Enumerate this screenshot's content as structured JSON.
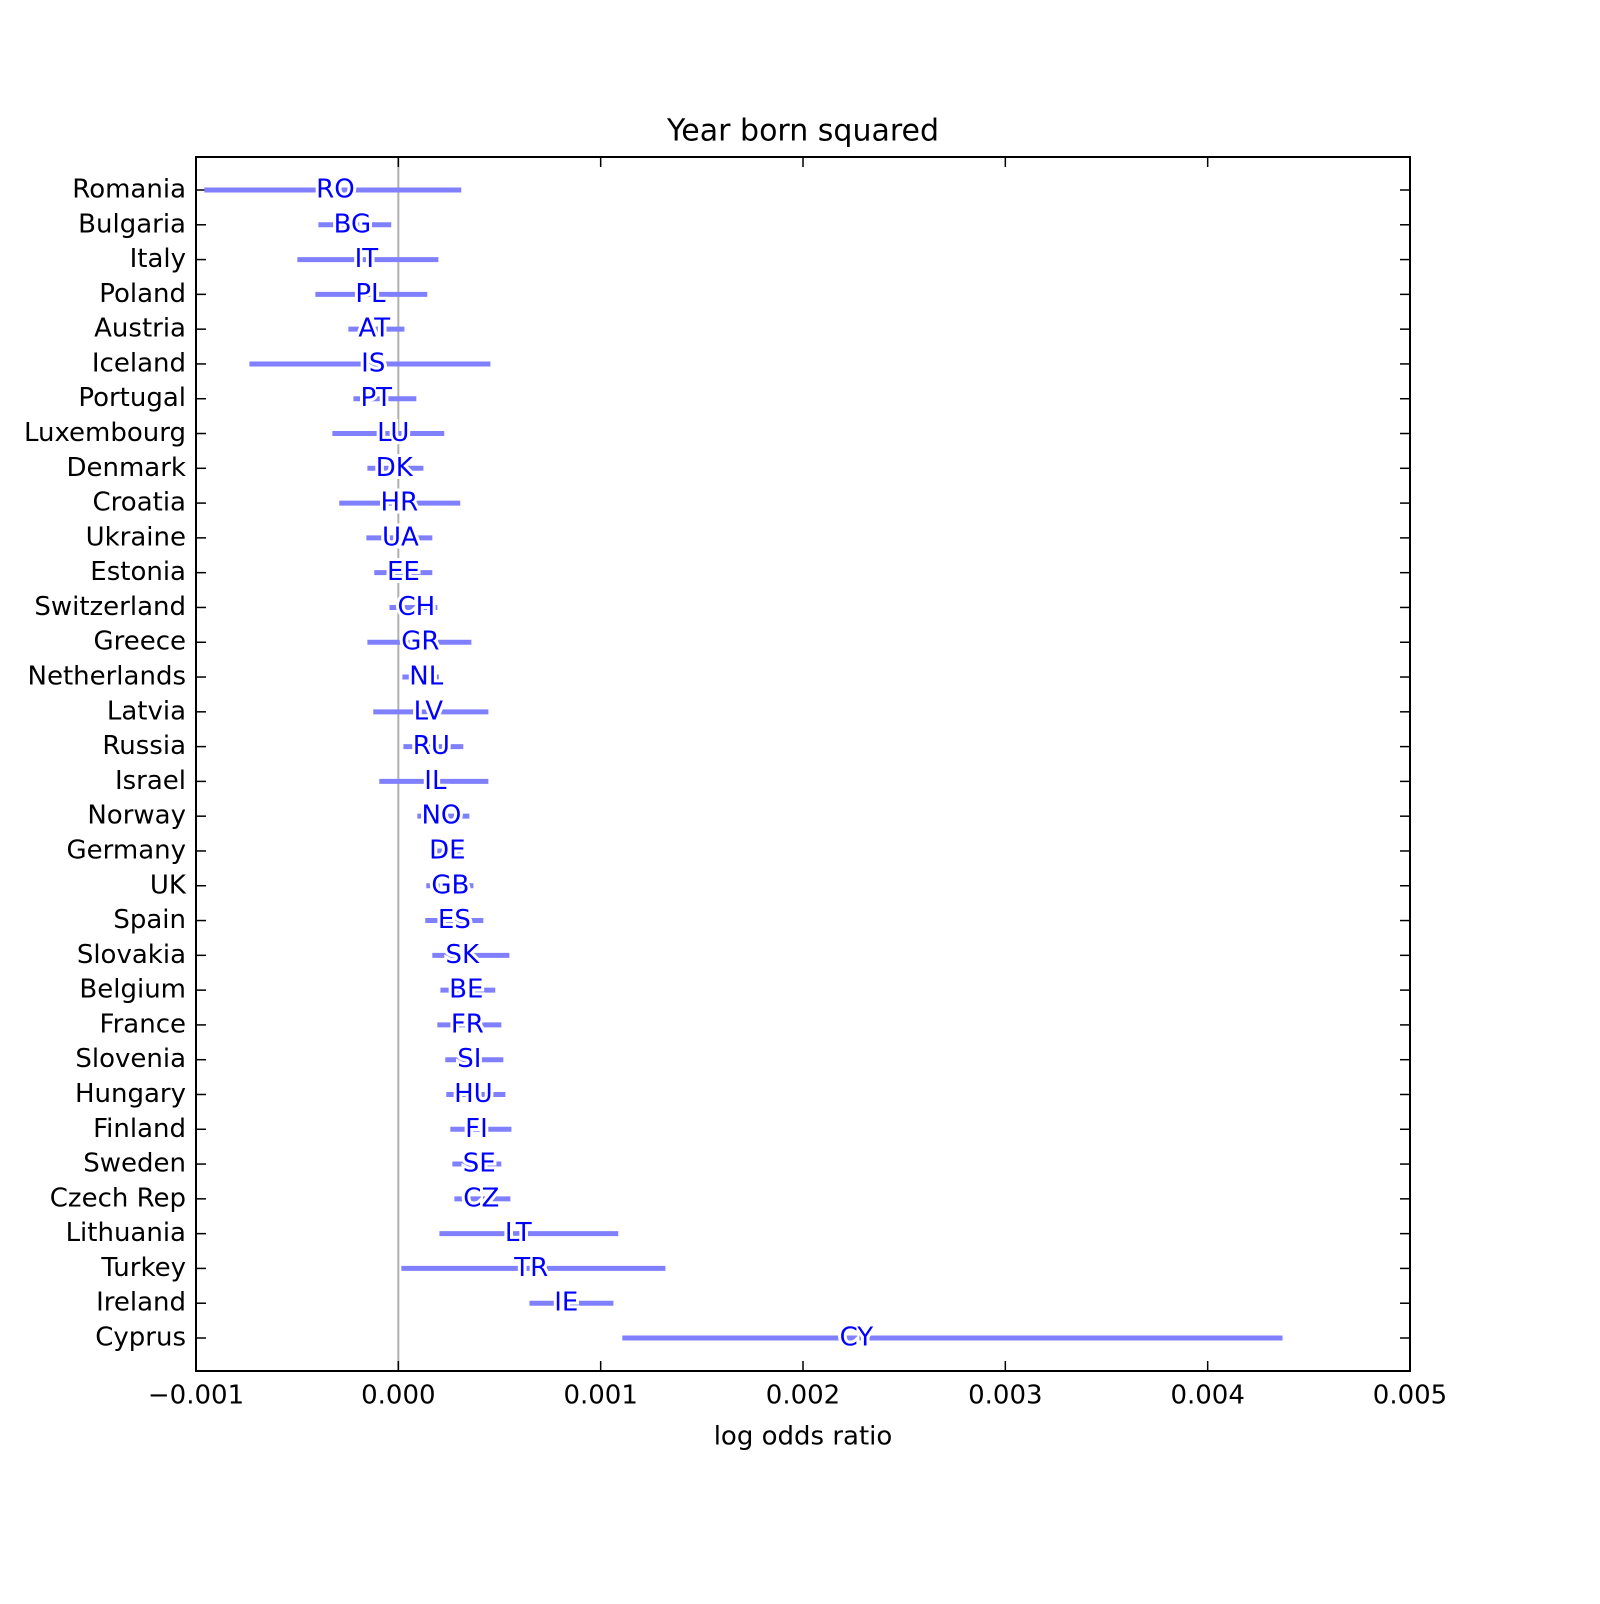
{
  "chart_data": {
    "type": "interval",
    "title": "Year born squared",
    "x_label": "log odds ratio",
    "categories": [
      "Romania",
      "Bulgaria",
      "Italy",
      "Poland",
      "Austria",
      "Iceland",
      "Portugal",
      "Luxembourg",
      "Denmark",
      "Croatia",
      "Ukraine",
      "Estonia",
      "Switzerland",
      "Greece",
      "Netherlands",
      "Latvia",
      "Russia",
      "Israel",
      "Norway",
      "Germany",
      "UK",
      "Spain",
      "Slovakia",
      "Belgium",
      "France",
      "Slovenia",
      "Hungary",
      "Finland",
      "Sweden",
      "Czech Rep",
      "Lithuania",
      "Turkey",
      "Ireland",
      "Cyprus"
    ],
    "codes": [
      "RO",
      "BG",
      "IT",
      "PL",
      "AT",
      "IS",
      "PT",
      "LU",
      "DK",
      "HR",
      "UA",
      "EE",
      "CH",
      "GR",
      "NL",
      "LV",
      "RU",
      "IL",
      "NO",
      "DE",
      "GB",
      "ES",
      "SK",
      "BE",
      "FR",
      "SI",
      "HU",
      "FI",
      "SE",
      "CZ",
      "LT",
      "TR",
      "IE",
      "CY"
    ],
    "values": [
      -0.000311,
      -0.000227,
      -0.000158,
      -0.000138,
      -0.000119,
      -0.000124,
      -0.000109,
      -2.5e-05,
      -2e-05,
      5e-06,
      1e-05,
      2.5e-05,
      8.9e-05,
      0.000109,
      0.000138,
      0.000148,
      0.000163,
      0.000183,
      0.000213,
      0.000242,
      0.000257,
      0.000277,
      0.000316,
      0.000336,
      0.000341,
      0.000351,
      0.000371,
      0.000386,
      0.0004,
      0.00041,
      0.000593,
      0.000657,
      0.00083,
      0.002264
    ],
    "low": [
      -0.000959,
      -0.000395,
      -0.000499,
      -0.00041,
      -0.000247,
      -0.000736,
      -0.000222,
      -0.000326,
      -0.000153,
      -0.000292,
      -0.000158,
      -0.000119,
      -4.4e-05,
      -0.000153,
      2e-05,
      -0.000124,
      2.5e-05,
      -9.4e-05,
      9.4e-05,
      0.00017,
      0.000138,
      0.000133,
      0.000168,
      0.000208,
      0.000193,
      0.000232,
      0.000237,
      0.000257,
      0.000267,
      0.000277,
      0.000203,
      1.5e-05,
      0.000648,
      0.001107
    ],
    "high": [
      0.000311,
      -3.5e-05,
      0.000198,
      0.000143,
      3e-05,
      0.000455,
      8.9e-05,
      0.000227,
      0.000124,
      0.000306,
      0.000168,
      0.000168,
      0.000193,
      0.000361,
      0.0002,
      0.000445,
      0.000321,
      0.000445,
      0.000351,
      0.00031,
      0.000371,
      0.00042,
      0.000549,
      0.000479,
      0.000509,
      0.000519,
      0.000529,
      0.000559,
      0.000509,
      0.000554,
      0.001087,
      0.00132,
      0.001063,
      0.00437
    ],
    "color": "#8080ff",
    "label_color": "#0000ff",
    "reference_line": 0,
    "xlim": [
      -0.001,
      0.005
    ],
    "xticks": [
      {
        "value": -0.001,
        "label": "−0.001"
      },
      {
        "value": 0,
        "label": "0.000"
      },
      0.001,
      0.002,
      0.003,
      0.004,
      0.005
    ]
  }
}
